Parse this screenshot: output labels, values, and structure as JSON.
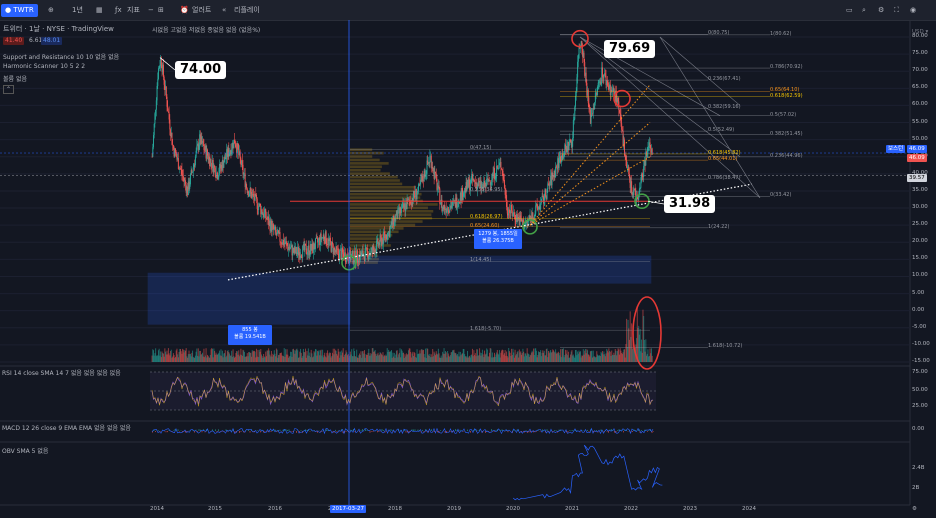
{
  "topbar": {
    "symbol": "TWTR",
    "interval": "1년",
    "indicators_label": "지표",
    "alert_label": "얼러트",
    "replay_label": "리플레이"
  },
  "legend": {
    "title": "트위터 · 1날 · NYSE · TradingView",
    "ohlc": "시없음 고없음 저없음 종없음 없음 (없음%)",
    "sell": "41.40",
    "spread": "6.61",
    "buy": "48.01",
    "sr": "Support and Resistance 10 10  없음 없음",
    "harmonic": "Harmonic Scanner 10 5 2 2",
    "volume": "볼륨 없음"
  },
  "callouts": {
    "c1": "74.00",
    "c2": "79.69",
    "c3": "31.98"
  },
  "boxes": {
    "box1_line1": "855 봉",
    "box1_line2": "볼륨 19.541B",
    "box2_line1": "1279 봉, 1855일",
    "box2_line2": "볼륨 26.375B"
  },
  "fib_right": [
    {
      "label": "0(80.75)",
      "color": "#9598a1"
    },
    {
      "label": "1(80.62)",
      "color": "#9598a1"
    },
    {
      "label": "0.786(70.92)",
      "color": "#9598a1"
    },
    {
      "label": "0.236(67.41)",
      "color": "#9598a1"
    },
    {
      "label": "0.65(64.10)",
      "color": "#f7931a"
    },
    {
      "label": "0.618(62.59)",
      "color": "#f7c600"
    },
    {
      "label": "0.382(59.16)",
      "color": "#9598a1"
    },
    {
      "label": "0.5(57.02)",
      "color": "#9598a1"
    },
    {
      "label": "0.5(52.49)",
      "color": "#9598a1"
    },
    {
      "label": "0.382(51.45)",
      "color": "#9598a1"
    },
    {
      "label": "0.618(45.82)",
      "color": "#f7c600"
    },
    {
      "label": "0.65(44.01)",
      "color": "#f7931a"
    },
    {
      "label": "0.236(44.96)",
      "color": "#9598a1"
    },
    {
      "label": "0.786(38.47)",
      "color": "#9598a1"
    },
    {
      "label": "0(33.42)",
      "color": "#9598a1"
    },
    {
      "label": "1(24.22)",
      "color": "#9598a1"
    },
    {
      "label": "1.618(-10.72)",
      "color": "#9598a1"
    }
  ],
  "fib_mid": [
    {
      "label": "0(47.15)",
      "color": "#9598a1"
    },
    {
      "label": "0.236(34.95)",
      "color": "#9598a1"
    },
    {
      "label": "0.618(26.97)",
      "color": "#f7c600"
    },
    {
      "label": "0.65(24.60)",
      "color": "#f7931a"
    },
    {
      "label": "1(14.45)",
      "color": "#9598a1"
    },
    {
      "label": "1.618(-5.70)",
      "color": "#9598a1"
    }
  ],
  "price_labels": {
    "hl1": "보스턴",
    "current": "46.09",
    "current2": "46.09",
    "level": "39.57"
  },
  "rsi_label": "RSI 14 close SMA 14 7  없음 없음 없음 없음",
  "macd_label": "MACD 12 26 close 9 EMA EMA  없음 없음 없음",
  "obv_label": "OBV SMA 5  없음",
  "date_marker": "2017-03-27",
  "colors": {
    "up": "#26a69a",
    "down": "#ef5350",
    "accent": "#2962ff",
    "rsi": "#7e57c2",
    "obv": "#2962ff"
  },
  "chart_data": [
    {
      "type": "line",
      "title": "트위터 · 1날 · NYSE",
      "x": [
        "2014",
        "2015",
        "2016",
        "2017",
        "2018",
        "2019",
        "2020",
        "2021",
        "2022"
      ],
      "series": [
        {
          "values": [
            74.0,
            40.0,
            20.0,
            17.0,
            30.0,
            32.0,
            25.0,
            79.69,
            31.98
          ]
        }
      ],
      "ylim": [
        -15,
        80
      ],
      "yticks": [
        80,
        75,
        70,
        65,
        60,
        55,
        50,
        45,
        40,
        35,
        30,
        25,
        20,
        15,
        10,
        5,
        0,
        -5,
        -10,
        -15
      ],
      "xticks": [
        "2014",
        "2015",
        "2016",
        "2017",
        "2018",
        "2019",
        "2020",
        "2021",
        "2022",
        "2023",
        "2024"
      ]
    },
    {
      "type": "line",
      "title": "RSI 14 close SMA 14 7",
      "ylim": [
        25,
        75
      ],
      "yticks": [
        75,
        50,
        25
      ]
    },
    {
      "type": "line",
      "title": "MACD 12 26 close 9 EMA EMA",
      "yticks": [
        0
      ]
    },
    {
      "type": "line",
      "title": "OBV SMA 5",
      "yticks": [
        "2.4B",
        "2B"
      ]
    }
  ]
}
